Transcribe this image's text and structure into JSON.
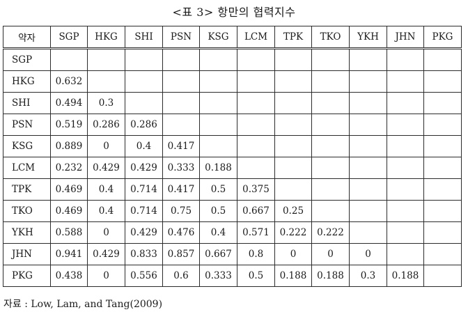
{
  "caption": "<표 3> 항만의 협력지수",
  "table": {
    "corner": "약자",
    "columns": [
      "SGP",
      "HKG",
      "SHI",
      "PSN",
      "KSG",
      "LCM",
      "TPK",
      "TKO",
      "YKH",
      "JHN",
      "PKG"
    ],
    "rows": [
      {
        "label": "SGP",
        "values": []
      },
      {
        "label": "HKG",
        "values": [
          "0.632"
        ]
      },
      {
        "label": "SHI",
        "values": [
          "0.494",
          "0.3"
        ]
      },
      {
        "label": "PSN",
        "values": [
          "0.519",
          "0.286",
          "0.286"
        ]
      },
      {
        "label": "KSG",
        "values": [
          "0.889",
          "0",
          "0.4",
          "0.417"
        ]
      },
      {
        "label": "LCM",
        "values": [
          "0.232",
          "0.429",
          "0.429",
          "0.333",
          "0.188"
        ]
      },
      {
        "label": "TPK",
        "values": [
          "0.469",
          "0.4",
          "0.714",
          "0.417",
          "0.5",
          "0.375"
        ]
      },
      {
        "label": "TKO",
        "values": [
          "0.469",
          "0.4",
          "0.714",
          "0.75",
          "0.5",
          "0.667",
          "0.25"
        ]
      },
      {
        "label": "YKH",
        "values": [
          "0.588",
          "0",
          "0.429",
          "0.476",
          "0.4",
          "0.571",
          "0.222",
          "0.222"
        ]
      },
      {
        "label": "JHN",
        "values": [
          "0.941",
          "0.429",
          "0.833",
          "0.857",
          "0.667",
          "0.8",
          "0",
          "0",
          "0"
        ]
      },
      {
        "label": "PKG",
        "values": [
          "0.438",
          "0",
          "0.556",
          "0.6",
          "0.333",
          "0.5",
          "0.188",
          "0.188",
          "0.3",
          "0.188"
        ]
      }
    ]
  },
  "source": "자료 : Low, Lam, and Tang(2009)"
}
